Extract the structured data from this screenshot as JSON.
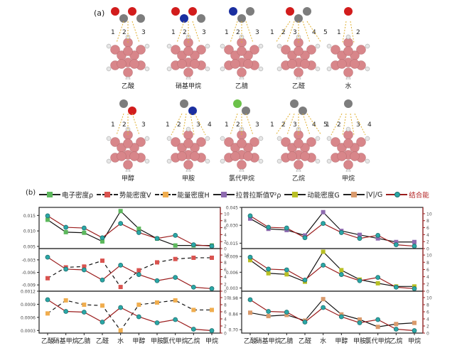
{
  "panel_a": {
    "tag": "(a)",
    "molecules": [
      {
        "name": "乙酸",
        "atoms": [
          "O",
          "C",
          "O",
          "C"
        ],
        "bond_labels": [
          "1",
          "2",
          "3"
        ]
      },
      {
        "name": "硝基甲烷",
        "atoms": [
          "O",
          "N",
          "O",
          "C"
        ],
        "bond_labels": [
          "1",
          "2",
          "3"
        ]
      },
      {
        "name": "乙腈",
        "atoms": [
          "N",
          "C",
          "C"
        ],
        "bond_labels": [
          "1",
          "2",
          "3"
        ]
      },
      {
        "name": "乙醛",
        "atoms": [
          "O",
          "C",
          "C"
        ],
        "bond_labels": [
          "1",
          "2",
          "3",
          "4",
          "5"
        ]
      },
      {
        "name": "水",
        "atoms": [
          "O"
        ],
        "bond_labels": [
          "1",
          "2"
        ]
      },
      {
        "name": "甲醇",
        "atoms": [
          "C",
          "O"
        ],
        "bond_labels": [
          "1",
          "2",
          "3"
        ]
      },
      {
        "name": "甲胺",
        "atoms": [
          "C",
          "N"
        ],
        "bond_labels": [
          "1",
          "2",
          "3",
          "4"
        ]
      },
      {
        "name": "氯代甲烷",
        "atoms": [
          "Cl",
          "C"
        ],
        "bond_labels": [
          "1",
          "2",
          "3"
        ]
      },
      {
        "name": "乙烷",
        "atoms": [
          "C",
          "C"
        ],
        "bond_labels": [
          "1",
          "2",
          "3",
          "4",
          "5"
        ]
      },
      {
        "name": "甲烷",
        "atoms": [
          "C"
        ],
        "bond_labels": [
          "1",
          "2",
          "3",
          "4"
        ]
      }
    ],
    "colors": {
      "O": "#d21c1c",
      "N": "#1b2fa0",
      "C": "#7d7d7d",
      "Cl": "#6cc24a",
      "H": "#e6e6e6",
      "B": "#d8868a"
    }
  },
  "panel_b": {
    "tag": "(b)",
    "legend": [
      {
        "label": "电子密度ρ",
        "color": "#5cb85c",
        "style": "solid",
        "marker": "square"
      },
      {
        "label": "势能密度V",
        "color": "#d9534f",
        "style": "dashed",
        "marker": "square"
      },
      {
        "label": "能量密度H",
        "color": "#f0ad4e",
        "style": "dashed",
        "marker": "square"
      },
      {
        "label": "拉普拉斯值∇²ρ",
        "color": "#8e6bb0",
        "style": "solid",
        "marker": "square"
      },
      {
        "label": "动能密度G",
        "color": "#b8bf24",
        "style": "solid",
        "marker": "square"
      },
      {
        "label": "|V|/G",
        "color": "#d99a6c",
        "style": "solid",
        "marker": "square"
      },
      {
        "label": "结合能",
        "color": "#2aa7a6",
        "style": "solid",
        "marker": "circle",
        "line_color": "#9b1d1d"
      }
    ]
  },
  "chart_data": [
    {
      "type": "line",
      "position": "top-left",
      "categories": [
        "乙酸",
        "硝基甲烷",
        "乙腈",
        "乙醛",
        "水",
        "甲醇",
        "甲胺",
        "氯代甲烷",
        "乙烷",
        "甲烷"
      ],
      "series": [
        {
          "name": "电子密度ρ",
          "axis": "left",
          "style": "solid",
          "values": [
            0.0136,
            0.0096,
            0.0094,
            0.0066,
            0.0164,
            0.0107,
            0.0075,
            0.0053,
            0.0053,
            0.0053
          ]
        },
        {
          "name": "结合能",
          "axis": "right",
          "style": "solid",
          "values": [
            9.4,
            6.1,
            5.9,
            3.1,
            7.2,
            4.6,
            2.9,
            3.8,
            1.1,
            0.7
          ]
        }
      ],
      "yticks_left": [
        "0.015",
        "0.010",
        "0.005"
      ],
      "ylim_left": [
        0.0043,
        0.0176
      ],
      "yticks_right": [
        "0",
        "2",
        "4",
        "6",
        "8",
        "10"
      ],
      "ylim_right": [
        0,
        11
      ]
    },
    {
      "type": "line",
      "position": "middle-left",
      "categories": [
        "乙酸",
        "硝基甲烷",
        "乙腈",
        "乙醛",
        "水",
        "甲醇",
        "甲胺",
        "氯代甲烷",
        "乙烷",
        "甲烷"
      ],
      "series": [
        {
          "name": "势能密度V",
          "axis": "left",
          "style": "dashed",
          "values": [
            -0.0074,
            -0.0048,
            -0.0046,
            -0.0032,
            -0.0095,
            -0.0055,
            -0.0036,
            -0.0028,
            -0.0025,
            -0.0025
          ]
        },
        {
          "name": "结合能",
          "axis": "right",
          "style": "solid",
          "values": [
            9.4,
            6.1,
            5.9,
            3.1,
            7.2,
            4.6,
            2.9,
            3.8,
            1.1,
            0.7
          ]
        }
      ],
      "yticks_left": [
        "-0.003",
        "-0.006",
        "-0.009"
      ],
      "ylim_left": [
        -0.0105,
        -0.0003
      ],
      "yticks_right": [
        "0",
        "2",
        "4",
        "6",
        "8",
        "10"
      ],
      "ylim_right": [
        0,
        11
      ]
    },
    {
      "type": "line",
      "position": "bottom-left",
      "categories": [
        "乙酸",
        "硝基甲烷",
        "乙腈",
        "乙醛",
        "水",
        "甲醇",
        "甲胺",
        "氯代甲烷",
        "乙烷",
        "甲烷"
      ],
      "series": [
        {
          "name": "能量密度H",
          "axis": "left",
          "style": "dashed",
          "values": [
            0.00069,
            0.00099,
            0.00089,
            0.00087,
            0.0003,
            0.00089,
            0.00094,
            0.00099,
            0.00077,
            0.00077
          ]
        },
        {
          "name": "结合能",
          "axis": "right",
          "style": "solid",
          "values": [
            9.4,
            6.1,
            5.9,
            3.1,
            7.2,
            4.6,
            2.9,
            3.8,
            1.1,
            0.7
          ]
        }
      ],
      "yticks_left": [
        "0.0012",
        "0.0009",
        "0.0006",
        "0.0003"
      ],
      "ylim_left": [
        0.00024,
        0.0012
      ],
      "yticks_right": [
        "0",
        "2",
        "4",
        "6",
        "8",
        "10"
      ],
      "ylim_right": [
        0,
        11
      ]
    },
    {
      "type": "line",
      "position": "top-right",
      "categories": [
        "乙酸",
        "硝基甲烷",
        "乙腈",
        "乙醛",
        "水",
        "甲醇",
        "甲胺",
        "氯代甲烷",
        "乙烷",
        "甲烷"
      ],
      "series": [
        {
          "name": "拉普拉斯值∇²ρ",
          "axis": "left",
          "style": "solid",
          "values": [
            0.0356,
            0.027,
            0.026,
            0.0215,
            0.041,
            0.0253,
            0.022,
            0.019,
            0.016,
            0.016
          ]
        },
        {
          "name": "结合能",
          "axis": "right",
          "style": "solid",
          "values": [
            9.4,
            6.1,
            5.9,
            3.1,
            7.2,
            4.6,
            2.9,
            3.8,
            1.1,
            0.7
          ]
        }
      ],
      "yticks_left": [
        "0.045",
        "0.030",
        "0.015"
      ],
      "ylim_left": [
        0.0105,
        0.045
      ],
      "yticks_right": [
        "0",
        "2",
        "4",
        "6",
        "8",
        "10"
      ],
      "ylim_right": [
        0,
        11
      ]
    },
    {
      "type": "line",
      "position": "middle-right",
      "categories": [
        "乙酸",
        "硝基甲烷",
        "乙腈",
        "乙醛",
        "水",
        "甲醇",
        "甲胺",
        "氯代甲烷",
        "乙烷",
        "甲烷"
      ],
      "series": [
        {
          "name": "动能密度G",
          "axis": "left",
          "style": "solid",
          "values": [
            0.0083,
            0.0058,
            0.0056,
            0.0042,
            0.0099,
            0.0064,
            0.0046,
            0.0039,
            0.0033,
            0.0033
          ]
        },
        {
          "name": "结合能",
          "axis": "right",
          "style": "solid",
          "values": [
            9.4,
            6.1,
            5.9,
            3.1,
            7.2,
            4.6,
            2.9,
            3.8,
            1.1,
            0.7
          ]
        }
      ],
      "yticks_left": [
        "0.009",
        "0.006",
        "0.003"
      ],
      "ylim_left": [
        0.0024,
        0.0105
      ],
      "yticks_right": [
        "0",
        "2",
        "4",
        "6",
        "8",
        "10"
      ],
      "ylim_right": [
        0,
        11
      ]
    },
    {
      "type": "line",
      "position": "bottom-right",
      "categories": [
        "乙酸",
        "硝基甲烷",
        "乙腈",
        "乙醛",
        "水",
        "甲醇",
        "甲胺",
        "氯代甲烷",
        "乙烷",
        "甲烷"
      ],
      "series": [
        {
          "name": "|V|/G",
          "axis": "left",
          "style": "solid",
          "values": [
            0.85,
            0.82,
            0.83,
            0.78,
            0.97,
            0.835,
            0.79,
            0.725,
            0.75,
            0.76
          ]
        },
        {
          "name": "结合能",
          "axis": "right",
          "style": "solid",
          "values": [
            9.4,
            6.1,
            5.9,
            3.1,
            7.2,
            4.6,
            2.9,
            3.8,
            1.1,
            0.7
          ]
        }
      ],
      "yticks_left": [
        "0.98",
        "0.84",
        "0.70"
      ],
      "ylim_left": [
        0.67,
        1.04
      ],
      "yticks_right": [
        "0",
        "2",
        "4",
        "6",
        "8",
        "10"
      ],
      "ylim_right": [
        0,
        11
      ]
    }
  ]
}
